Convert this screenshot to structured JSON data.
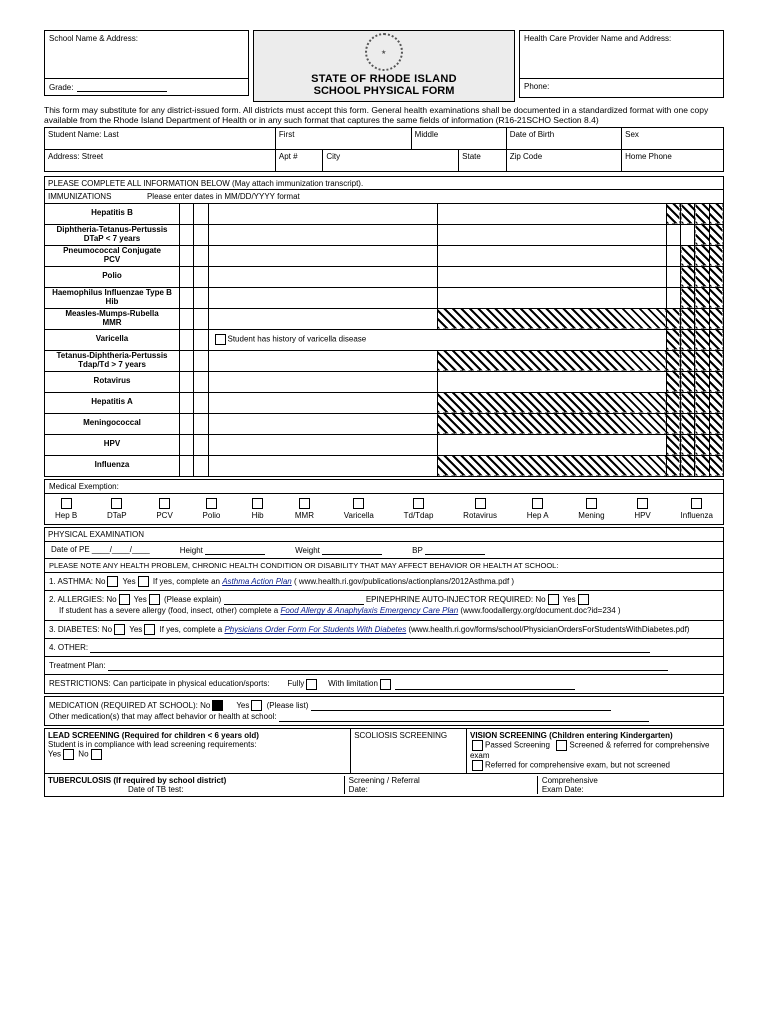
{
  "header": {
    "school_label": "School Name & Address:",
    "grade_label": "Grade:",
    "state_line": "STATE OF RHODE ISLAND",
    "form_line": "SCHOOL PHYSICAL FORM",
    "provider_label": "Health Care Provider Name and Address:",
    "phone_label": "Phone:"
  },
  "intro": "This form may substitute for any district-issued form. All districts must accept this form. General health examinations shall be documented in a standardized format with one copy available from the Rhode Island Department of Health or in any such format that captures the same fields of information (R16-21SCHO Section 8.4)",
  "student_row": {
    "last": "Student Name: Last",
    "first": "First",
    "middle": "Middle",
    "dob": "Date of Birth",
    "sex": "Sex"
  },
  "addr_row": {
    "street": "Address: Street",
    "apt": "Apt #",
    "city": "City",
    "state": "State",
    "zip": "Zip Code",
    "phone": "Home Phone"
  },
  "section_complete": "PLEASE COMPLETE ALL INFORMATION BELOW (May attach immunization transcript).",
  "immu_header": "IMMUNIZATIONS                Please enter dates in MM/DD/YYYY format",
  "immu_rows": [
    {
      "label": "Hepatitis B",
      "sub": "",
      "hatch": [
        5,
        6,
        7,
        8
      ],
      "note": ""
    },
    {
      "label": "Diphtheria-Tetanus-Pertussis",
      "sub": "DTaP < 7 years",
      "hatch": [
        7,
        8
      ],
      "note": ""
    },
    {
      "label": "Pneumococcal Conjugate",
      "sub": "PCV",
      "hatch": [
        6,
        7,
        8
      ],
      "note": ""
    },
    {
      "label": "Polio",
      "sub": "",
      "hatch": [
        6,
        7,
        8
      ],
      "note": ""
    },
    {
      "label": "Haemophilus Influenzae Type B",
      "sub": "Hib",
      "hatch": [
        6,
        7,
        8
      ],
      "note": ""
    },
    {
      "label": "Measles-Mumps-Rubella",
      "sub": "MMR",
      "hatch": [
        4,
        5,
        6,
        7,
        8
      ],
      "note": ""
    },
    {
      "label": "Varicella",
      "sub": "",
      "hatch": [
        4,
        5,
        6,
        7,
        8
      ],
      "note": "Student has history of varicella disease",
      "note_col": 3
    },
    {
      "label": "Tetanus-Diphtheria-Pertussis",
      "sub": "Tdap/Td > 7 years",
      "hatch": [
        4,
        5,
        6,
        7,
        8
      ],
      "note": ""
    },
    {
      "label": "Rotavirus",
      "sub": "",
      "hatch": [
        5,
        6,
        7,
        8
      ],
      "note": ""
    },
    {
      "label": "Hepatitis A",
      "sub": "",
      "hatch": [
        4,
        5,
        6,
        7,
        8
      ],
      "note": ""
    },
    {
      "label": "Meningococcal",
      "sub": "",
      "hatch": [
        4,
        5,
        6,
        7,
        8
      ],
      "note": ""
    },
    {
      "label": "HPV",
      "sub": "",
      "hatch": [
        5,
        6,
        7,
        8
      ],
      "note": ""
    },
    {
      "label": "Influenza",
      "sub": "",
      "hatch": [
        4,
        5,
        6,
        7,
        8
      ],
      "note": ""
    }
  ],
  "med_exempt_label": "Medical Exemption:",
  "exempt_items": [
    "Hep B",
    "DTaP",
    "PCV",
    "Polio",
    "Hib",
    "MMR",
    "Varicella",
    "Td/Tdap",
    "Rotavirus",
    "Hep A",
    "Mening",
    "HPV",
    "Influenza"
  ],
  "pe": {
    "title": "PHYSICAL EXAMINATION",
    "date_label": "Date of PE ____/____/____",
    "height": "Height",
    "weight": "Weight",
    "bp": "BP"
  },
  "note_bar": "PLEASE NOTE ANY HEALTH PROBLEM, CHRONIC HEALTH CONDITION OR DISABILITY THAT MAY AFFECT BEHAVIOR OR HEALTH AT SCHOOL:",
  "q1": {
    "lead": "1. ASTHMA:    No",
    "yes": "Yes",
    "tail": "If yes, complete an ",
    "link": "Asthma Action Plan",
    "paren": "( www.health.ri.gov/publications/actionplans/2012Asthma.pdf )"
  },
  "q2": {
    "lead": "2. ALLERGIES: No",
    "yes": "Yes",
    "explain": "(Please explain)",
    "epi": "EPINEPHRINE AUTO-INJECTOR REQUIRED:  No",
    "yes2": "Yes",
    "sub": "If student has a severe allergy (food, insect, other) complete a ",
    "link": "Food Allergy & Anaphylaxis Emergency Care Plan",
    "paren": "(www.foodallergy.org/document.doc?id=234 )"
  },
  "q3": {
    "lead": "3. DIABETES:  No",
    "yes": "Yes",
    "tail": "If yes, complete a ",
    "link": "Physicians Order Form For Students With Diabetes",
    "paren": "(www.health.ri.gov/forms/school/PhysicianOrdersForStudentsWithDiabetes.pdf)"
  },
  "q4": "4. OTHER:",
  "tp": "Treatment Plan:",
  "restrict": {
    "lead": "RESTRICTIONS:  Can participate in physical education/sports:",
    "f": "Fully",
    "w": "With limitation"
  },
  "med_school": {
    "lead": "MEDICATION (REQUIRED AT SCHOOL):  No",
    "yes": "Yes",
    "list": "(Please list)",
    "other": "Other medication(s) that may affect behavior or health at school:"
  },
  "lead_scr": {
    "title": "LEAD SCREENING (Required for children < 6 years old)",
    "line": "Student is in compliance with lead screening requirements:",
    "yes": "Yes",
    "no": "No"
  },
  "scoliosis": "SCOLIOSIS SCREENING",
  "vision": {
    "title": "VISION SCREENING (Children entering Kindergarten)",
    "o1": "Passed Screening",
    "o2": "Screened & referred for comprehensive exam",
    "o3": "Referred for comprehensive exam, but not screened"
  },
  "tb": {
    "title": "TUBERCULOSIS (If required by school district)",
    "date": "Date of TB test:",
    "sr": "Screening / Referral",
    "sr_date": "Date:",
    "comp": "Comprehensive",
    "comp_date": "Exam Date:"
  }
}
